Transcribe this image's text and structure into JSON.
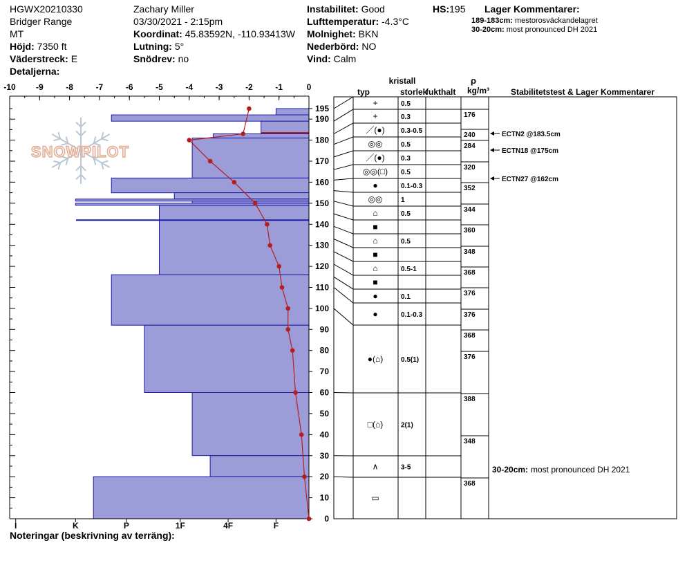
{
  "header": {
    "site_id": "HGWX20210330",
    "range": "Bridger Range",
    "state": "MT",
    "elevation_label": "Höjd:",
    "elevation_value": "7350 ft",
    "aspect_label": "Väderstreck:",
    "aspect_value": "E",
    "details_label": "Detaljerna:",
    "observer": "Zachary Miller",
    "datetime": "03/30/2021 - 2:15pm",
    "coords_label": "Koordinat:",
    "coords_value": "45.83592N, -110.93413W",
    "slope_label": "Lutning:",
    "slope_value": "5°",
    "drift_label": "Snödrev:",
    "drift_value": "no",
    "stability_label": "Instabilitet:",
    "stability_value": "Good",
    "airtemp_label": "Lufttemperatur:",
    "airtemp_value": "-4.3°C",
    "sky_label": "Molnighet:",
    "sky_value": "BKN",
    "precip_label": "Nederbörd:",
    "precip_value": "NO",
    "wind_label": "Vind:",
    "wind_value": "Calm",
    "hs_label": "HS:",
    "hs_value": "195",
    "layer_comments_title": "Lager Kommentarer:",
    "layer_comments": [
      {
        "range": "189-183cm:",
        "text": "mestorosväckandelagret"
      },
      {
        "range": "30-20cm:",
        "text": "most pronounced DH 2021"
      }
    ]
  },
  "watermark": "SNOWPILOT",
  "columns": {
    "crystal_title": "kristall",
    "type": "typ",
    "size": "storlek",
    "moisture": "fukthalt",
    "rho": "ρ",
    "rho_unit": "kg/m³",
    "stability_title": "Stabilitetstest & Lager Kommentarer"
  },
  "footer": {
    "notes_label": "Noteringar (beskrivning av terräng):"
  },
  "chart_data": {
    "type": "snow_profile",
    "temp_axis": {
      "min": -10,
      "max": 0,
      "ticks": [
        "-10",
        "-9",
        "-8",
        "-7",
        "-6",
        "-5",
        "-4",
        "-3",
        "-2",
        "-1",
        "0"
      ]
    },
    "height_axis": {
      "min": 0,
      "max": 195,
      "ticks": [
        0,
        10,
        20,
        30,
        40,
        50,
        60,
        70,
        80,
        90,
        100,
        110,
        120,
        130,
        140,
        150,
        160,
        170,
        180,
        190,
        195
      ]
    },
    "hardness_ticks": [
      {
        "label": "I",
        "temp": -9.8
      },
      {
        "label": "K",
        "temp": -7.8
      },
      {
        "label": "P",
        "temp": -6.1
      },
      {
        "label": "1F",
        "temp": -4.3
      },
      {
        "label": "4F",
        "temp": -2.7
      },
      {
        "label": "F",
        "temp": -1.1
      }
    ],
    "hardness_layers": [
      {
        "top": 195,
        "bottom": 192,
        "temp": -1.1
      },
      {
        "top": 192,
        "bottom": 189,
        "temp": -6.6
      },
      {
        "top": 189,
        "bottom": 183,
        "temp": -1.6
      },
      {
        "top": 183,
        "bottom": 181,
        "temp": -3.2
      },
      {
        "top": 181,
        "bottom": 162,
        "temp": -3.9
      },
      {
        "top": 162,
        "bottom": 155,
        "temp": -6.6
      },
      {
        "top": 155,
        "bottom": 152,
        "temp": -4.5
      },
      {
        "top": 152,
        "bottom": 151,
        "temp": -7.8
      },
      {
        "top": 151,
        "bottom": 150,
        "temp": -3.9
      },
      {
        "top": 150,
        "bottom": 149,
        "temp": -7.8
      },
      {
        "top": 149,
        "bottom": 116,
        "temp": -5.0
      },
      {
        "top": 116,
        "bottom": 92,
        "temp": -6.6
      },
      {
        "top": 92,
        "bottom": 60,
        "temp": -5.5
      },
      {
        "top": 60,
        "bottom": 30,
        "temp": -3.9
      },
      {
        "top": 30,
        "bottom": 20,
        "temp": -3.3
      },
      {
        "top": 20,
        "bottom": 0,
        "temp": -7.2
      }
    ],
    "layer_lines": [
      142
    ],
    "temp_profile": [
      {
        "h": 195,
        "t": -2.0
      },
      {
        "h": 183,
        "t": -2.2
      },
      {
        "h": 180,
        "t": -4.0
      },
      {
        "h": 170,
        "t": -3.3
      },
      {
        "h": 160,
        "t": -2.5
      },
      {
        "h": 150,
        "t": -1.8
      },
      {
        "h": 140,
        "t": -1.4
      },
      {
        "h": 130,
        "t": -1.3
      },
      {
        "h": 120,
        "t": -1.0
      },
      {
        "h": 110,
        "t": -0.9
      },
      {
        "h": 100,
        "t": -0.7
      },
      {
        "h": 90,
        "t": -0.7
      },
      {
        "h": 80,
        "t": -0.55
      },
      {
        "h": 60,
        "t": -0.45
      },
      {
        "h": 40,
        "t": -0.25
      },
      {
        "h": 20,
        "t": -0.15
      },
      {
        "h": 0,
        "t": 0
      }
    ],
    "layers": [
      {
        "top": 195,
        "bottom": 189,
        "type": "+",
        "size": "0.5",
        "density": "176"
      },
      {
        "top": 189,
        "bottom": 183,
        "type": "+",
        "size": "0.3",
        "density": "240"
      },
      {
        "top": 183,
        "bottom": 178,
        "type": "／(●)",
        "size": "0.3-0.5",
        "density": "284"
      },
      {
        "top": 178,
        "bottom": 172,
        "type": "◎◎",
        "size": "0.5",
        "density": "320"
      },
      {
        "top": 172,
        "bottom": 166,
        "type": "／(●)",
        "size": "0.3",
        "density": "352"
      },
      {
        "top": 166,
        "bottom": 161,
        "type": "◎◎(□)",
        "size": "0.5",
        "density": ""
      },
      {
        "top": 161,
        "bottom": 156,
        "type": "●",
        "size": "0.1-0.3",
        "density": ""
      },
      {
        "top": 156,
        "bottom": 151,
        "type": "◎◎",
        "size": "1",
        "density": "344"
      },
      {
        "top": 151,
        "bottom": 145,
        "type": "⌂",
        "size": "0.5",
        "density": "360"
      },
      {
        "top": 145,
        "bottom": 139,
        "type": "■",
        "size": "",
        "density": ""
      },
      {
        "top": 139,
        "bottom": 133,
        "type": "⌂",
        "size": "0.5",
        "density": "348"
      },
      {
        "top": 133,
        "bottom": 127,
        "type": "■",
        "size": "",
        "density": ""
      },
      {
        "top": 127,
        "bottom": 121,
        "type": "⌂",
        "size": "0.5-1",
        "density": "368"
      },
      {
        "top": 121,
        "bottom": 115,
        "type": "■",
        "size": "",
        "density": ""
      },
      {
        "top": 115,
        "bottom": 110,
        "type": "●",
        "size": "0.1",
        "density": "376"
      },
      {
        "top": 110,
        "bottom": 100,
        "type": "●",
        "size": "0.1-0.3",
        "density": "376"
      },
      {
        "top": 100,
        "bottom": 60,
        "type": "●(⌂)",
        "size": "0.5(1)",
        "density": "368"
      },
      {
        "top": 60,
        "bottom": 30,
        "type": "□(⌂)",
        "size": "2(1)",
        "density": "388"
      },
      {
        "top": 30,
        "bottom": 20,
        "type": "∧",
        "size": "3-5",
        "density": ""
      },
      {
        "top": 20,
        "bottom": 0,
        "type": "▭",
        "size": "",
        "density": "368"
      }
    ],
    "density_marks": [
      {
        "label": "176",
        "h": 190
      },
      {
        "label": "240",
        "h": 181
      },
      {
        "label": "284",
        "h": 177
      },
      {
        "label": "320",
        "h": 168
      },
      {
        "label": "352",
        "h": 158
      },
      {
        "label": "344",
        "h": 147
      },
      {
        "label": "360",
        "h": 137
      },
      {
        "label": "348",
        "h": 125
      },
      {
        "label": "368",
        "h": 115
      },
      {
        "label": "376",
        "h": 104
      },
      {
        "label": "376",
        "h": 95
      },
      {
        "label": "368",
        "h": 86
      },
      {
        "label": "376",
        "h": 77
      },
      {
        "label": "388",
        "h": 57
      },
      {
        "label": "348",
        "h": 40
      },
      {
        "label": "368",
        "h": 17
      }
    ],
    "stability_tests": [
      {
        "label": "ECTN2 @183.5cm",
        "h": 183.5
      },
      {
        "label": "ECTN18 @175cm",
        "h": 175
      },
      {
        "label": "ECTN27 @162cm",
        "h": 162
      }
    ],
    "column_comment": {
      "range": "30-20cm:",
      "text": "most pronounced DH 2021",
      "h": 25
    }
  }
}
